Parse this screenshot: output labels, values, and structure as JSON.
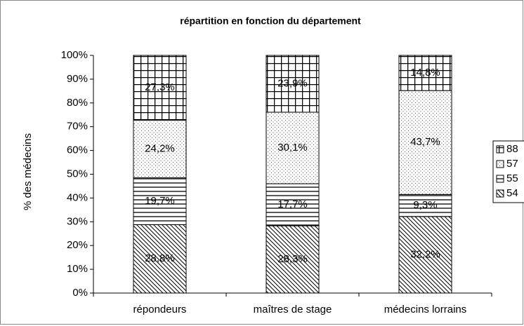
{
  "chart_data": {
    "type": "stacked_bar",
    "title": "répartition en fonction du département",
    "ylabel": "% des médecins",
    "categories": [
      "répondeurs",
      "maîtres de stage",
      "médecins lorrains"
    ],
    "series": [
      {
        "name": "54",
        "color": "#000000",
        "pattern": "diagonal",
        "values": [
          28.8,
          28.3,
          32.2
        ],
        "value_labels": [
          "28,8%",
          "28,3%",
          "32,2%"
        ]
      },
      {
        "name": "55",
        "color": "#000000",
        "pattern": "horizontal",
        "values": [
          19.7,
          17.7,
          9.3
        ],
        "value_labels": [
          "19,7%",
          "17,7%",
          "9,3%"
        ]
      },
      {
        "name": "57",
        "color": "#000000",
        "pattern": "dots",
        "values": [
          24.2,
          30.1,
          43.7
        ],
        "value_labels": [
          "24,2%",
          "30,1%",
          "43,7%"
        ]
      },
      {
        "name": "88",
        "color": "#000000",
        "pattern": "grid",
        "values": [
          27.3,
          23.9,
          14.8
        ],
        "value_labels": [
          "27,3%",
          "23,9%",
          "14,8%"
        ]
      }
    ],
    "ylim": [
      0,
      100
    ],
    "yticks": [
      {
        "value": 0,
        "label": "0%"
      },
      {
        "value": 10,
        "label": "10%"
      },
      {
        "value": 20,
        "label": "20%"
      },
      {
        "value": 30,
        "label": "30%"
      },
      {
        "value": 40,
        "label": "40%"
      },
      {
        "value": 50,
        "label": "50%"
      },
      {
        "value": 60,
        "label": "60%"
      },
      {
        "value": 70,
        "label": "70%"
      },
      {
        "value": 80,
        "label": "80%"
      },
      {
        "value": 90,
        "label": "90%"
      },
      {
        "value": 100,
        "label": "100%"
      }
    ],
    "legend": "right"
  }
}
